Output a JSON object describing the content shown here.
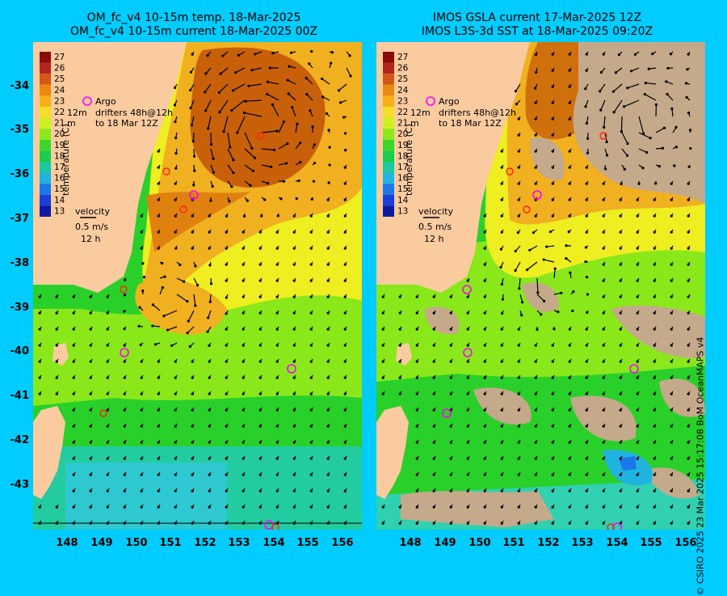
{
  "titles": {
    "left_line1": "OM_fc_v4  10-15m temp. 18-Mar-2025",
    "left_line2": "OM_fc_v4  10-15m current 18-Mar-2025 00Z",
    "right_line1": "IMOS GSLA current 17-Mar-2025 12Z",
    "right_line2": "IMOS L3S-3d SST at 18-Mar-2025 09:20Z"
  },
  "colorbar": {
    "ticks": [
      "27",
      "26",
      "25",
      "24",
      "23",
      "22",
      "21",
      "20",
      "19",
      "18",
      "17",
      "16",
      "15",
      "14",
      "13"
    ],
    "label": "temperature (C)",
    "colors": [
      "#8b0a0a",
      "#b3261e",
      "#d2581a",
      "#e98a10",
      "#f5b018",
      "#f5df2a",
      "#cff020",
      "#8ce81a",
      "#3dd62c",
      "#1ccc4a",
      "#19c9a0",
      "#1fb4e0",
      "#1b78e8",
      "#1a3fd8",
      "#0e1a9e"
    ]
  },
  "legend": {
    "argo": "Argo",
    "drifters": "drifters 48h@12h",
    "drifters_time": "to 18 Mar 12Z",
    "prefix_12m": "12m",
    "prefix_m": "m",
    "velocity_title": "velocity",
    "velocity_speed": "0.5 m/s",
    "velocity_time": "12 h"
  },
  "axes": {
    "lat_ticks": [
      "-34",
      "-35",
      "-36",
      "-37",
      "-38",
      "-39",
      "-40",
      "-41",
      "-42",
      "-43"
    ],
    "lon_ticks": [
      "148",
      "149",
      "150",
      "151",
      "152",
      "153",
      "154",
      "155",
      "156"
    ]
  },
  "credit": "© CSIRO 2025   23 Mar 2025 15:17:08 BoM OceanMAPS v4",
  "colors": {
    "land": "#fbcba0",
    "missing": "#c4a98a",
    "warm_core": "#c8600a",
    "orange": "#f0a020",
    "yellow": "#eeee20",
    "green": "#2ad02a",
    "cyan": "#30d0b0",
    "background": "#00ccff",
    "argo_marker": "#ff00ff",
    "drifter_marker": "#ff2200"
  }
}
